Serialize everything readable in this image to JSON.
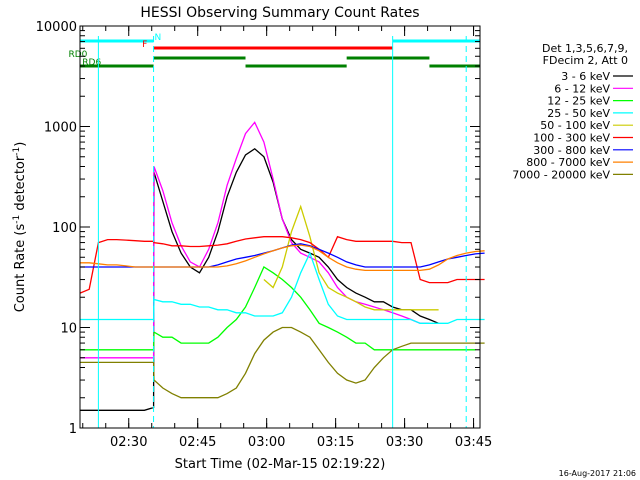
{
  "chart_data": {
    "type": "line",
    "title": "HESSI Observing Summary Count Rates",
    "xlabel": "Start Time (02-Mar-15 02:19:22)",
    "ylabel_main": "Count Rate (s",
    "ylabel_sup1": "-1",
    "ylabel_mid": " detector",
    "ylabel_sup2": "-1",
    "ylabel_end": ")",
    "yscale": "log",
    "ylim": [
      1,
      10000
    ],
    "xlim_minutes": [
      0,
      87
    ],
    "x_ticks": [
      {
        "min": 10.6,
        "label": "02:30"
      },
      {
        "min": 25.6,
        "label": "02:45"
      },
      {
        "min": 40.6,
        "label": "03:00"
      },
      {
        "min": 55.6,
        "label": "03:15"
      },
      {
        "min": 70.6,
        "label": "03:30"
      },
      {
        "min": 85.6,
        "label": "03:45"
      }
    ],
    "y_ticks": [
      {
        "value": 1,
        "label": "1"
      },
      {
        "value": 10,
        "label": "10"
      },
      {
        "value": 100,
        "label": "100"
      },
      {
        "value": 1000,
        "label": "1000"
      },
      {
        "value": 10000,
        "label": "10000"
      }
    ],
    "legend_header": [
      "Det 1,3,5,6,7,9,",
      "FDecim 2, Att 0"
    ],
    "x": [
      0,
      2,
      4,
      6,
      8,
      10,
      12,
      14,
      16,
      16.1,
      18,
      20,
      22,
      24,
      26,
      28,
      30,
      32,
      34,
      36,
      38,
      40,
      42,
      44,
      46,
      48,
      50,
      52,
      54,
      56,
      58,
      60,
      62,
      64,
      66,
      68,
      70,
      72,
      74,
      76,
      78,
      80,
      82,
      84,
      86,
      88
    ],
    "series": [
      {
        "name": "3 - 6 keV",
        "color": "#000000",
        "values": [
          1.5,
          1.5,
          1.5,
          1.5,
          1.5,
          1.5,
          1.5,
          1.5,
          1.6,
          350,
          180,
          90,
          55,
          40,
          35,
          50,
          90,
          200,
          350,
          520,
          600,
          500,
          280,
          120,
          75,
          60,
          55,
          50,
          40,
          30,
          25,
          22,
          20,
          18,
          18,
          16,
          15,
          15,
          13,
          12,
          11,
          null,
          null,
          null,
          null,
          null
        ]
      },
      {
        "name": "6 - 12 keV",
        "color": "#ff00ff",
        "values": [
          5,
          5,
          5,
          5,
          5,
          5,
          5,
          5,
          5,
          400,
          230,
          110,
          65,
          45,
          40,
          60,
          110,
          260,
          480,
          850,
          1100,
          700,
          300,
          120,
          70,
          55,
          50,
          45,
          35,
          25,
          20,
          18,
          17,
          16,
          15,
          14,
          13,
          12,
          11,
          11,
          null,
          null,
          null,
          null,
          null,
          null
        ]
      },
      {
        "name": "12 - 25 keV",
        "color": "#00ff00",
        "values": [
          6,
          6,
          6,
          6,
          6,
          6,
          6,
          6,
          6,
          9,
          8,
          8,
          7,
          7,
          7,
          7,
          8,
          10,
          12,
          16,
          25,
          40,
          35,
          30,
          25,
          20,
          15,
          11,
          10,
          9,
          8,
          7,
          7,
          6,
          6,
          6,
          6,
          6,
          6,
          6,
          6,
          6,
          6,
          6,
          6,
          null
        ]
      },
      {
        "name": "25 - 50 keV",
        "color": "#00ffff",
        "values": [
          12,
          12,
          12,
          12,
          12,
          12,
          12,
          12,
          12,
          19,
          18,
          18,
          17,
          17,
          16,
          16,
          15,
          15,
          14,
          14,
          13,
          13,
          13,
          14,
          20,
          35,
          55,
          30,
          17,
          13,
          12,
          12,
          12,
          12,
          12,
          12,
          12,
          12,
          11,
          11,
          11,
          11,
          12,
          12,
          12,
          12
        ]
      },
      {
        "name": "50 - 100 keV",
        "color": "#cccc00",
        "values": [
          null,
          null,
          null,
          null,
          null,
          null,
          null,
          null,
          null,
          null,
          null,
          null,
          null,
          null,
          null,
          null,
          null,
          null,
          null,
          null,
          null,
          30,
          25,
          40,
          90,
          160,
          80,
          35,
          25,
          22,
          20,
          18,
          16,
          15,
          15,
          15,
          15,
          15,
          15,
          15,
          15,
          null,
          null,
          null,
          null,
          null
        ]
      },
      {
        "name": "100 - 300 keV",
        "color": "#ff0000",
        "values": [
          22,
          24,
          70,
          75,
          75,
          74,
          73,
          72,
          72,
          70,
          68,
          65,
          65,
          64,
          64,
          65,
          66,
          68,
          72,
          76,
          78,
          80,
          80,
          80,
          78,
          75,
          70,
          60,
          50,
          80,
          75,
          72,
          72,
          72,
          72,
          72,
          70,
          70,
          30,
          28,
          28,
          28,
          30,
          30,
          30,
          30
        ]
      },
      {
        "name": "300 - 800 keV",
        "color": "#0000ff",
        "values": [
          40,
          40,
          40,
          40,
          40,
          40,
          40,
          40,
          40,
          40,
          40,
          40,
          40,
          40,
          40,
          40,
          42,
          45,
          48,
          50,
          52,
          55,
          58,
          62,
          66,
          68,
          65,
          60,
          55,
          50,
          45,
          42,
          40,
          40,
          40,
          40,
          40,
          40,
          40,
          42,
          45,
          48,
          50,
          52,
          54,
          55
        ]
      },
      {
        "name": "800 - 7000 keV",
        "color": "#ff8000",
        "values": [
          44,
          44,
          43,
          42,
          42,
          41,
          40,
          40,
          40,
          40,
          40,
          40,
          40,
          40,
          40,
          40,
          40,
          41,
          43,
          46,
          50,
          54,
          58,
          62,
          65,
          66,
          64,
          58,
          50,
          44,
          40,
          38,
          37,
          37,
          37,
          37,
          37,
          37,
          37,
          38,
          42,
          48,
          52,
          55,
          57,
          58
        ]
      },
      {
        "name": "7000 - 20000 keV",
        "color": "#808000",
        "values": [
          4.5,
          4.5,
          4.5,
          4.5,
          4.5,
          4.5,
          4.5,
          4.5,
          4.5,
          3.0,
          2.5,
          2.2,
          2.0,
          2.0,
          2.0,
          2.0,
          2.0,
          2.2,
          2.5,
          3.5,
          5.5,
          7.5,
          9,
          10,
          10,
          9,
          8,
          6,
          4.5,
          3.5,
          3,
          2.8,
          3,
          4,
          5,
          6,
          6.5,
          7,
          7,
          7,
          7,
          7,
          7,
          7,
          7,
          7
        ]
      }
    ],
    "state_bars": [
      {
        "label": "N",
        "color": "#00ffff",
        "label_min": 16.2,
        "level": 0,
        "segments": [
          [
            0,
            16
          ],
          [
            68,
            87
          ]
        ]
      },
      {
        "label": "F",
        "color": "#ff0000",
        "label_min": 13.5,
        "level": 1,
        "segments": [
          [
            16,
            68
          ]
        ]
      },
      {
        "label": "RD0",
        "color": "#008000",
        "label_min": -2.5,
        "level": 2,
        "segments": [
          [
            16,
            36
          ],
          [
            58,
            76
          ]
        ]
      },
      {
        "label": "RD6",
        "color": "#008000",
        "label_min": 0.5,
        "level": 3,
        "segments": [
          [
            0,
            16
          ],
          [
            36,
            58
          ],
          [
            76,
            87
          ]
        ]
      }
    ],
    "night_markers_min": [
      4,
      16,
      68,
      84
    ]
  },
  "footer_date": "16-Aug-2017 21:06"
}
